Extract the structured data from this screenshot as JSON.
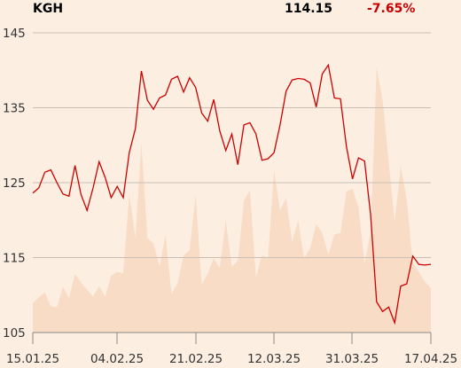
{
  "header": {
    "ticker": "KGH",
    "price": "114.15",
    "change": "-7.65%",
    "change_color": "#c40000"
  },
  "chart_data": {
    "type": "line",
    "title": "",
    "xlabel": "",
    "ylabel": "",
    "x_ticks": [
      "15.01.25",
      "04.02.25",
      "21.02.25",
      "12.03.25",
      "31.03.25",
      "17.04.25"
    ],
    "y_ticks": [
      105,
      115,
      125,
      135,
      145
    ],
    "ylim": [
      105,
      147
    ],
    "grid": true,
    "series": [
      {
        "role": "price",
        "color": "#cc0000",
        "values": [
          123.6,
          124.3,
          126.4,
          126.7,
          125.0,
          123.5,
          123.2,
          127.3,
          123.4,
          121.3,
          124.3,
          127.8,
          125.7,
          123.0,
          124.5,
          123.0,
          129.0,
          132.2,
          139.9,
          136.0,
          134.8,
          136.3,
          136.7,
          138.8,
          139.2,
          137.1,
          139.0,
          137.7,
          134.3,
          133.2,
          136.1,
          131.9,
          129.3,
          131.5,
          127.4,
          132.7,
          133.0,
          131.5,
          128.0,
          128.2,
          129.0,
          132.7,
          137.2,
          138.7,
          138.9,
          138.8,
          138.3,
          135.1,
          139.5,
          140.7,
          136.3,
          136.2,
          129.8,
          125.5,
          128.3,
          127.9,
          120.8,
          109.1,
          107.8,
          108.4,
          106.3,
          111.2,
          111.5,
          115.2,
          114.1,
          114.0,
          114.1
        ]
      },
      {
        "role": "volume",
        "color": "#f8dcc6",
        "values": [
          108.9,
          109.7,
          110.4,
          108.5,
          108.4,
          111.1,
          109.6,
          112.8,
          111.7,
          110.7,
          109.8,
          111.2,
          109.8,
          112.6,
          113.1,
          112.9,
          123.5,
          117.7,
          130.3,
          117.6,
          116.9,
          113.8,
          118.0,
          110.2,
          111.6,
          115.3,
          116.0,
          123.4,
          111.4,
          112.9,
          114.9,
          113.6,
          120.0,
          113.8,
          114.6,
          122.6,
          124.0,
          112.4,
          115.3,
          115.0,
          126.7,
          121.3,
          122.9,
          117.1,
          120.0,
          114.9,
          116.3,
          119.5,
          118.3,
          115.4,
          118.1,
          118.3,
          123.8,
          124.2,
          121.7,
          114.3,
          118.3,
          140.4,
          136.0,
          127.8,
          119.8,
          127.2,
          122.7,
          114.3,
          113.1,
          111.8,
          110.9
        ]
      }
    ]
  }
}
